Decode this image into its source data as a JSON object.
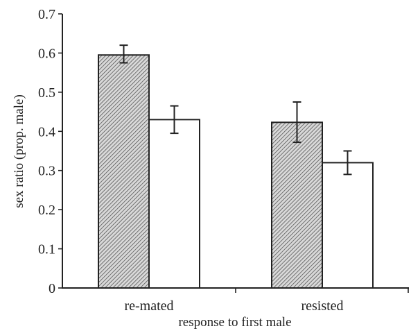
{
  "chart_data": {
    "type": "bar",
    "title": "",
    "xlabel": "response to first male",
    "ylabel": "sex ratio (prop. male)",
    "categories": [
      "re-mated",
      "resisted"
    ],
    "series": [
      {
        "fill": "hatched",
        "values": [
          0.595,
          0.423
        ],
        "err_low": [
          0.575,
          0.372
        ],
        "err_high": [
          0.62,
          0.475
        ]
      },
      {
        "fill": "white",
        "values": [
          0.43,
          0.32
        ],
        "err_low": [
          0.395,
          0.29
        ],
        "err_high": [
          0.465,
          0.35
        ]
      }
    ],
    "ylim": [
      0,
      0.7
    ],
    "yticks": [
      "0",
      "0.1",
      "0.2",
      "0.3",
      "0.4",
      "0.5",
      "0.6",
      "0.7"
    ],
    "grid": false,
    "legend": "none"
  }
}
